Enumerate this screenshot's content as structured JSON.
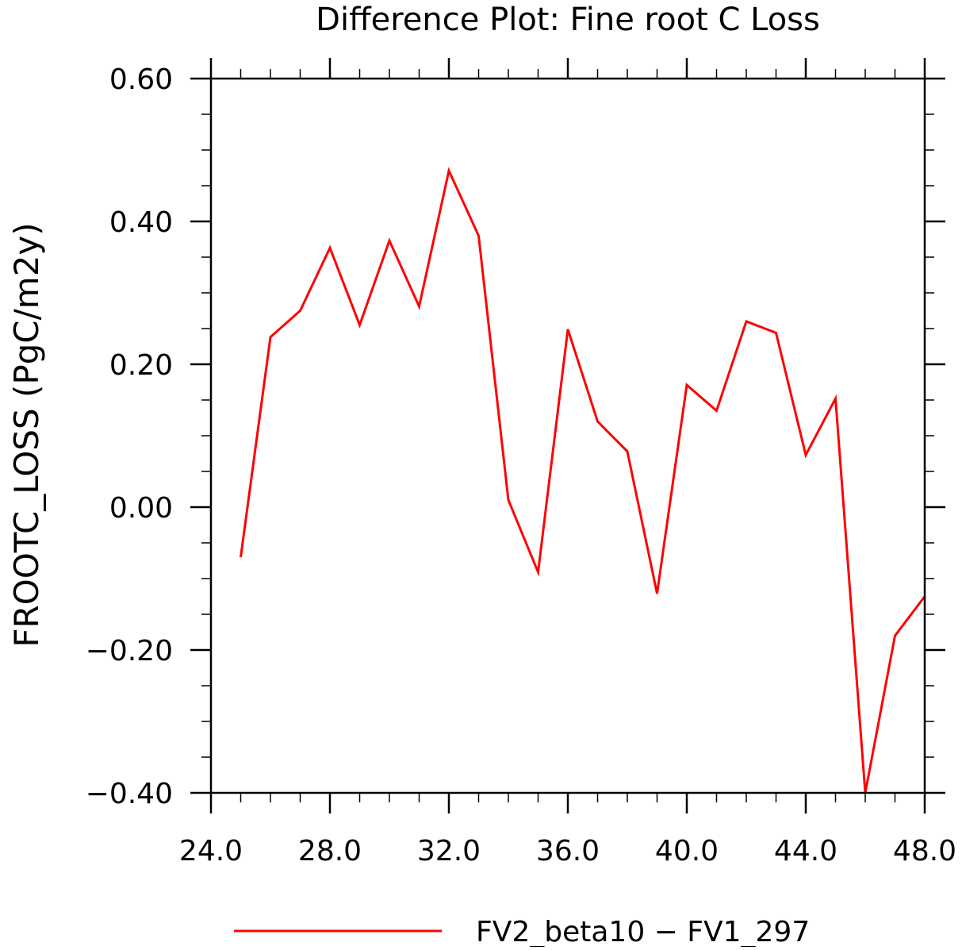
{
  "chart_data": {
    "type": "line",
    "title": "Difference Plot: Fine root C Loss",
    "ylabel": "FROOTC_LOSS  (PgC/m2y)",
    "xlabel": "",
    "xlim": [
      24.0,
      48.0
    ],
    "ylim": [
      -0.4,
      0.6
    ],
    "x_ticks": [
      24.0,
      28.0,
      32.0,
      36.0,
      40.0,
      44.0,
      48.0
    ],
    "x_tick_labels": [
      "24.0",
      "28.0",
      "32.0",
      "36.0",
      "40.0",
      "44.0",
      "48.0"
    ],
    "y_ticks": [
      -0.4,
      -0.2,
      0.0,
      0.2,
      0.4,
      0.6
    ],
    "y_tick_labels": [
      "−0.40",
      "−0.20",
      "0.00",
      "0.20",
      "0.40",
      "0.60"
    ],
    "grid": false,
    "legend_position": "bottom",
    "series": [
      {
        "name": "FV2_beta10 − FV1_297",
        "color": "#ff0000",
        "x": [
          25,
          26,
          27,
          28,
          29,
          30,
          31,
          32,
          33,
          34,
          35,
          36,
          37,
          38,
          39,
          40,
          41,
          42,
          43,
          44,
          45,
          46,
          47,
          48
        ],
        "y": [
          -0.07,
          0.238,
          0.275,
          0.363,
          0.255,
          0.373,
          0.281,
          0.471,
          0.38,
          0.01,
          -0.091,
          0.249,
          0.12,
          0.078,
          -0.121,
          0.171,
          0.135,
          0.26,
          0.244,
          0.073,
          0.152,
          -0.4,
          -0.18,
          -0.125
        ]
      }
    ]
  }
}
